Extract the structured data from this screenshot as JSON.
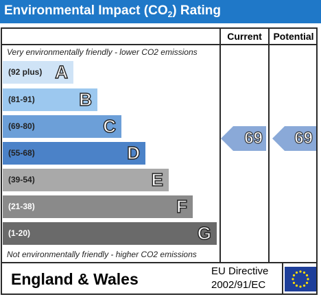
{
  "title": {
    "main": "Environmental Impact (CO",
    "subscript": "2",
    "suffix": ") Rating"
  },
  "columns": {
    "current": "Current",
    "potential": "Potential"
  },
  "notes": {
    "top": "Very environmentally friendly - lower CO2 emissions",
    "bottom": "Not environmentally friendly - higher CO2 emissions"
  },
  "footer": {
    "country": "England & Wales",
    "directive_line1": "EU Directive",
    "directive_line2": "2002/91/EC",
    "flag_icon": "eu-flag-icon"
  },
  "colors": {
    "title_bar": "#1f78c8",
    "arrow": "#8aa9d8"
  },
  "chart_data": {
    "type": "bar",
    "categories": [
      "A",
      "B",
      "C",
      "D",
      "E",
      "F",
      "G"
    ],
    "ranges": [
      "(92 plus)",
      "(81-91)",
      "(69-80)",
      "(55-68)",
      "(39-54)",
      "(21-38)",
      "(1-20)"
    ],
    "band_colors": [
      "#cfe3f6",
      "#9cc8ef",
      "#6c9fd8",
      "#4b82c8",
      "#a9a9a9",
      "#8a8a8a",
      "#6a6a6a"
    ],
    "current": 69,
    "potential": 69
  }
}
